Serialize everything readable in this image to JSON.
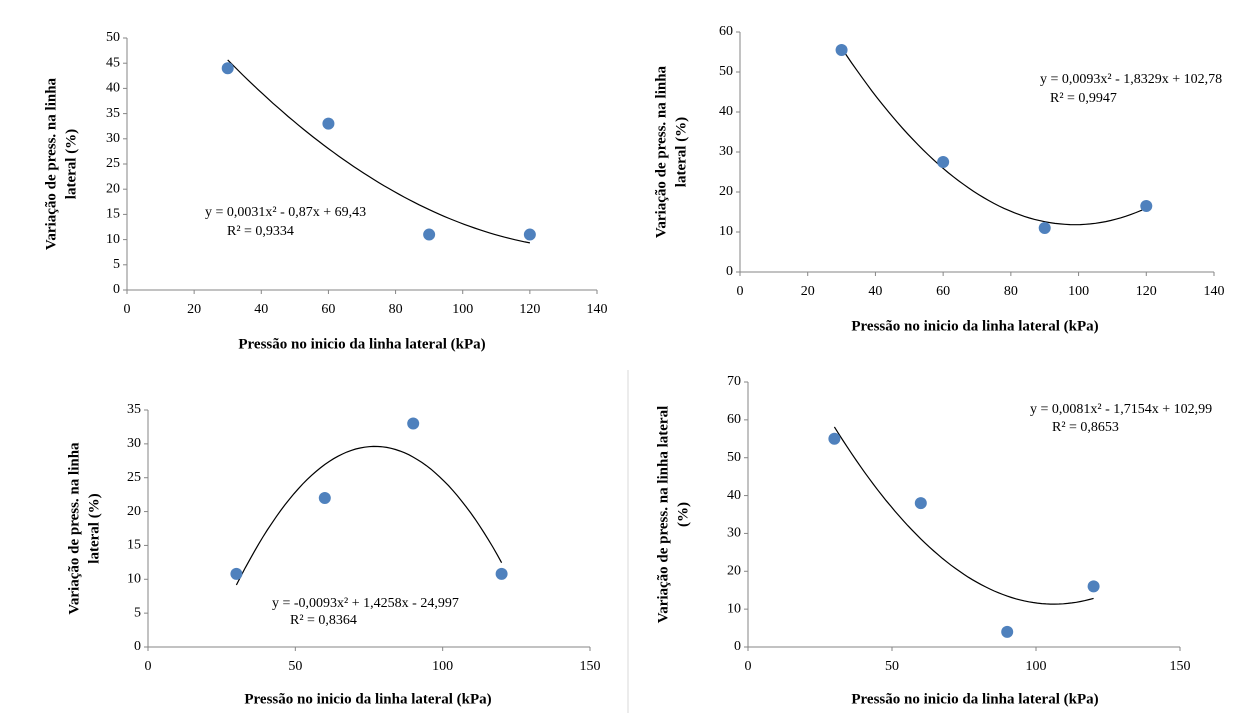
{
  "chart_data": [
    {
      "type": "scatter",
      "x": [
        30,
        60,
        90,
        120
      ],
      "values": [
        44,
        33,
        11,
        11
      ],
      "color": "#4f81bd",
      "xlim": [
        0,
        140
      ],
      "xticks": [
        0,
        20,
        40,
        60,
        80,
        100,
        120,
        140
      ],
      "ylim": [
        0,
        50
      ],
      "yticks": [
        0,
        5,
        10,
        15,
        20,
        25,
        30,
        35,
        40,
        45,
        50
      ],
      "xlabel": "Pressão no inicio da linha lateral (kPa)",
      "ylabel": [
        "Variação de press. na linha",
        "lateral (%)"
      ],
      "annotations": [
        "y = 0,0031x² - 0,87x + 69,43",
        "R² = 0,9334"
      ],
      "trendline": "polynomial"
    },
    {
      "type": "scatter",
      "x": [
        30,
        60,
        90,
        120
      ],
      "values": [
        55.5,
        27.5,
        11,
        16.5
      ],
      "color": "#4f81bd",
      "xlim": [
        0,
        140
      ],
      "xticks": [
        0,
        20,
        40,
        60,
        80,
        100,
        120,
        140
      ],
      "ylim": [
        0,
        60
      ],
      "yticks": [
        0,
        10,
        20,
        30,
        40,
        50,
        60
      ],
      "xlabel": "Pressão no inicio da linha lateral (kPa)",
      "ylabel": [
        "Variação de press. na linha",
        "lateral (%)"
      ],
      "annotations": [
        "y = 0,0093x² - 1,8329x + 102,78",
        "R² = 0,9947"
      ],
      "trendline": "polynomial"
    },
    {
      "type": "scatter",
      "x": [
        30,
        60,
        90,
        120
      ],
      "values": [
        10.8,
        22,
        33,
        10.8
      ],
      "color": "#4f81bd",
      "xlim": [
        0,
        150
      ],
      "xticks": [
        0,
        50,
        100,
        150
      ],
      "ylim": [
        0,
        35
      ],
      "yticks": [
        0,
        5,
        10,
        15,
        20,
        25,
        30,
        35
      ],
      "xlabel": "Pressão no inicio da linha lateral (kPa)",
      "ylabel": [
        "Variação de press. na linha",
        "lateral (%)"
      ],
      "annotations": [
        "y = -0,0093x² + 1,4258x - 24,997",
        "R² = 0,8364"
      ],
      "trendline": "polynomial"
    },
    {
      "type": "scatter",
      "x": [
        30,
        60,
        90,
        120
      ],
      "values": [
        55,
        38,
        4,
        16
      ],
      "color": "#4f81bd",
      "xlim": [
        0,
        150
      ],
      "xticks": [
        0,
        50,
        100,
        150
      ],
      "ylim": [
        0,
        70
      ],
      "yticks": [
        0,
        10,
        20,
        30,
        40,
        50,
        60,
        70
      ],
      "xlabel": "Pressão no inicio da linha lateral (kPa)",
      "ylabel": [
        "Variação de press. na linha lateral",
        "(%)"
      ],
      "annotations": [
        "y = 0,0081x² - 1,7154x + 102,99",
        "R² = 0,8653"
      ],
      "trendline": "polynomial"
    }
  ]
}
